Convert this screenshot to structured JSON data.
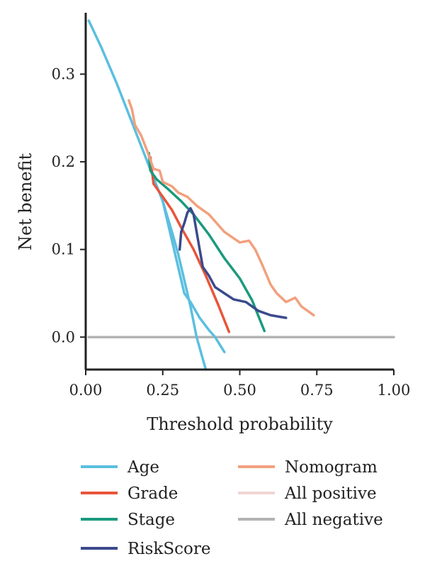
{
  "chart_data": {
    "type": "line",
    "xlabel": "Threshold probability",
    "ylabel": "Net benefit",
    "xlim": [
      0.0,
      1.0
    ],
    "ylim": [
      -0.037,
      0.37
    ],
    "xticks": [
      0.0,
      0.25,
      0.5,
      0.75,
      1.0
    ],
    "xtick_labels": [
      "0.00",
      "0.25",
      "0.50",
      "0.75",
      "1.00"
    ],
    "yticks": [
      0.0,
      0.1,
      0.2,
      0.3
    ],
    "ytick_labels": [
      "0.0",
      "0.1",
      "0.2",
      "0.3"
    ],
    "grid": false,
    "legend_position": "bottom",
    "series": [
      {
        "name": "Age",
        "color": "#5bbfdf",
        "legend_col": 0,
        "legend_row": 0,
        "points": [
          [
            0.01,
            0.361
          ],
          [
            0.05,
            0.331
          ],
          [
            0.1,
            0.29
          ],
          [
            0.15,
            0.245
          ],
          [
            0.2,
            0.2
          ],
          [
            0.25,
            0.155
          ],
          [
            0.28,
            0.11
          ],
          [
            0.3,
            0.08
          ],
          [
            0.32,
            0.05
          ],
          [
            0.34,
            0.04
          ],
          [
            0.37,
            0.022
          ],
          [
            0.4,
            0.008
          ],
          [
            0.42,
            0.0
          ],
          [
            0.45,
            -0.017
          ]
        ]
      },
      {
        "name": "Age",
        "color": "#5bbfdf",
        "legend_col": -1,
        "legend_row": -1,
        "points": [
          [
            0.25,
            0.155
          ],
          [
            0.28,
            0.12
          ],
          [
            0.3,
            0.095
          ],
          [
            0.32,
            0.065
          ],
          [
            0.34,
            0.035
          ],
          [
            0.36,
            0.0
          ],
          [
            0.38,
            -0.025
          ],
          [
            0.39,
            -0.037
          ]
        ]
      },
      {
        "name": "Grade",
        "color": "#e8553a",
        "legend_col": 0,
        "legend_row": 1,
        "points": [
          [
            0.21,
            0.205
          ],
          [
            0.22,
            0.175
          ],
          [
            0.25,
            0.16
          ],
          [
            0.28,
            0.145
          ],
          [
            0.31,
            0.125
          ],
          [
            0.35,
            0.1
          ],
          [
            0.39,
            0.07
          ],
          [
            0.43,
            0.037
          ],
          [
            0.465,
            0.006
          ]
        ]
      },
      {
        "name": "Stage",
        "color": "#1a9a7e",
        "legend_col": 0,
        "legend_row": 2,
        "points": [
          [
            0.205,
            0.21
          ],
          [
            0.21,
            0.19
          ],
          [
            0.23,
            0.18
          ],
          [
            0.27,
            0.168
          ],
          [
            0.31,
            0.155
          ],
          [
            0.35,
            0.14
          ],
          [
            0.4,
            0.117
          ],
          [
            0.45,
            0.09
          ],
          [
            0.5,
            0.067
          ],
          [
            0.54,
            0.042
          ],
          [
            0.58,
            0.007
          ]
        ]
      },
      {
        "name": "RiskScore",
        "color": "#3b4a8c",
        "legend_col": 0,
        "legend_row": 3,
        "points": [
          [
            0.305,
            0.1
          ],
          [
            0.31,
            0.12
          ],
          [
            0.32,
            0.13
          ],
          [
            0.33,
            0.142
          ],
          [
            0.34,
            0.147
          ],
          [
            0.35,
            0.14
          ],
          [
            0.36,
            0.12
          ],
          [
            0.37,
            0.1
          ],
          [
            0.38,
            0.08
          ],
          [
            0.4,
            0.07
          ],
          [
            0.42,
            0.057
          ],
          [
            0.45,
            0.05
          ],
          [
            0.48,
            0.043
          ],
          [
            0.52,
            0.04
          ],
          [
            0.56,
            0.03
          ],
          [
            0.6,
            0.025
          ],
          [
            0.65,
            0.022
          ]
        ]
      },
      {
        "name": "Nomogram",
        "color": "#f2a07e",
        "legend_col": 1,
        "legend_row": 0,
        "points": [
          [
            0.14,
            0.27
          ],
          [
            0.15,
            0.26
          ],
          [
            0.16,
            0.242
          ],
          [
            0.18,
            0.23
          ],
          [
            0.2,
            0.212
          ],
          [
            0.22,
            0.192
          ],
          [
            0.24,
            0.19
          ],
          [
            0.25,
            0.177
          ],
          [
            0.28,
            0.172
          ],
          [
            0.3,
            0.165
          ],
          [
            0.33,
            0.16
          ],
          [
            0.36,
            0.15
          ],
          [
            0.4,
            0.14
          ],
          [
            0.45,
            0.12
          ],
          [
            0.5,
            0.108
          ],
          [
            0.53,
            0.11
          ],
          [
            0.55,
            0.1
          ],
          [
            0.57,
            0.085
          ],
          [
            0.6,
            0.06
          ],
          [
            0.62,
            0.05
          ],
          [
            0.65,
            0.04
          ],
          [
            0.68,
            0.045
          ],
          [
            0.7,
            0.035
          ],
          [
            0.72,
            0.03
          ],
          [
            0.74,
            0.025
          ]
        ]
      },
      {
        "name": "All positive",
        "color": "#efd6d4",
        "legend_col": 1,
        "legend_row": 1,
        "points": []
      },
      {
        "name": "All negative",
        "color": "#b3b3b3",
        "legend_col": 1,
        "legend_row": 2,
        "points": [
          [
            0.01,
            0.0
          ],
          [
            1.0,
            0.0
          ]
        ]
      }
    ]
  }
}
